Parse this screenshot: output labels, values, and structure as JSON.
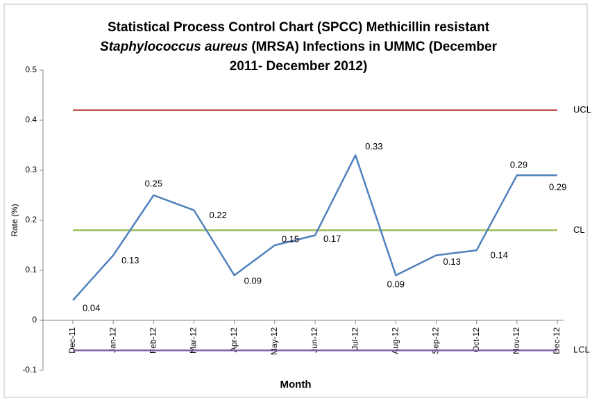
{
  "chart_data": {
    "type": "line",
    "title": [
      "Statistical Process Control Chart (SPCC) Methicillin resistant",
      "Staphylococcus aureus",
      "(MRSA) Infections in UMMC (December",
      "2011- December 2012)"
    ],
    "y_label": "Rate (%)",
    "x_label": "Month",
    "categories": [
      "Dec-11",
      "Jan-12",
      "Feb-12",
      "Mar-12",
      "Apr-12",
      "May-12",
      "Jun-12",
      "Jul-12",
      "Aug-12",
      "Sep-12",
      "Oct-12",
      "Nov-12",
      "Dec-12"
    ],
    "series": [
      {
        "color": "#4f81bd",
        "values": [
          0.04,
          0.13,
          0.25,
          0.22,
          0.09,
          0.15,
          0.17,
          0.33,
          0.09,
          0.13,
          0.14,
          0.29,
          0.29
        ]
      }
    ],
    "control_limits": [
      {
        "name": "UCL",
        "value": 0.42,
        "color": "#c0504d"
      },
      {
        "name": "CL",
        "value": 0.18,
        "color": "#9bbb59"
      },
      {
        "name": "LCL",
        "value": -0.06,
        "color": "#8064a2"
      }
    ],
    "ylim": [
      -0.1,
      0.5
    ],
    "yticks": [
      -0.1,
      0,
      0.1,
      0.2,
      0.3,
      0.4,
      0.5
    ]
  }
}
